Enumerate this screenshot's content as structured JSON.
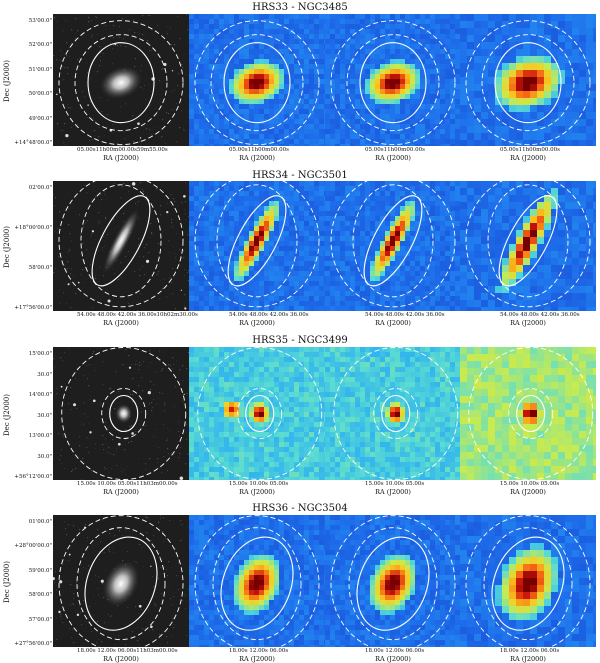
{
  "rows": [
    {
      "title": "HRS33 - NGC3485",
      "dec_label": "Dec (J2000)",
      "yticks": [
        "53'00.0\"",
        "52'00.0\"",
        "51'00.0\"",
        "50'00.0\"",
        "49'00.0\"",
        "+14°48'00.0\""
      ],
      "xticks": [
        "05.00s11h00m00.00s59m55.00s",
        "05.00s11h00m00.00s",
        "05.00s11h00m00.00s",
        "05.00s11h00m00.00s"
      ],
      "ra_label": "RA (J2000)"
    },
    {
      "title": "HRS34 - NGC3501",
      "dec_label": "Dec (J2000)",
      "yticks": [
        "02'00.0\"",
        "+18°00'00.0\"",
        "58'00.0\"",
        "+17°56'00.0\""
      ],
      "xticks": [
        "54.00s 48.00s 42.00s 36.00s10h02m30.00s",
        "54.00s 48.00s 42.00s 36.00s",
        "54.00s 48.00s 42.00s 36.00s",
        "54.00s 48.00s 42.00s 36.00s"
      ],
      "ra_label": "RA (J2000)"
    },
    {
      "title": "HRS35 - NGC3499",
      "dec_label": "Dec (J2000)",
      "yticks": [
        "15'00.0\"",
        "30.0\"",
        "14'00.0\"",
        "30.0\"",
        "13'00.0\"",
        "30.0\"",
        "+56°12'00.0\""
      ],
      "xticks": [
        "15.00s 10.00s 05.00s11h03m00.00s",
        "15.00s 10.00s 05.00s",
        "15.00s 10.00s 05.00s",
        "15.00s 10.00s 05.00s"
      ],
      "ra_label": "RA (J2000)"
    },
    {
      "title": "HRS36 - NGC3504",
      "dec_label": "Dec (J2000)",
      "yticks": [
        "01'00.0\"",
        "+28°00'00.0\"",
        "59'00.0\"",
        "58'00.0\"",
        "57'00.0\"",
        "+27°56'00.0\""
      ],
      "xticks": [
        "18.00s 12.00s 06.00s11h03m00.00s",
        "18.00s 12.00s 06.00s",
        "18.00s 12.00s 06.00s",
        "18.00s 12.00s 06.00s"
      ],
      "ra_label": "RA (J2000)"
    }
  ],
  "colors": {
    "optical_bg": "#1e1e1e",
    "map_bg": "#1f5fe0",
    "map_bg_yellow": "#c8e85a",
    "core": "#7a0000",
    "aperture": "#ffffff"
  }
}
